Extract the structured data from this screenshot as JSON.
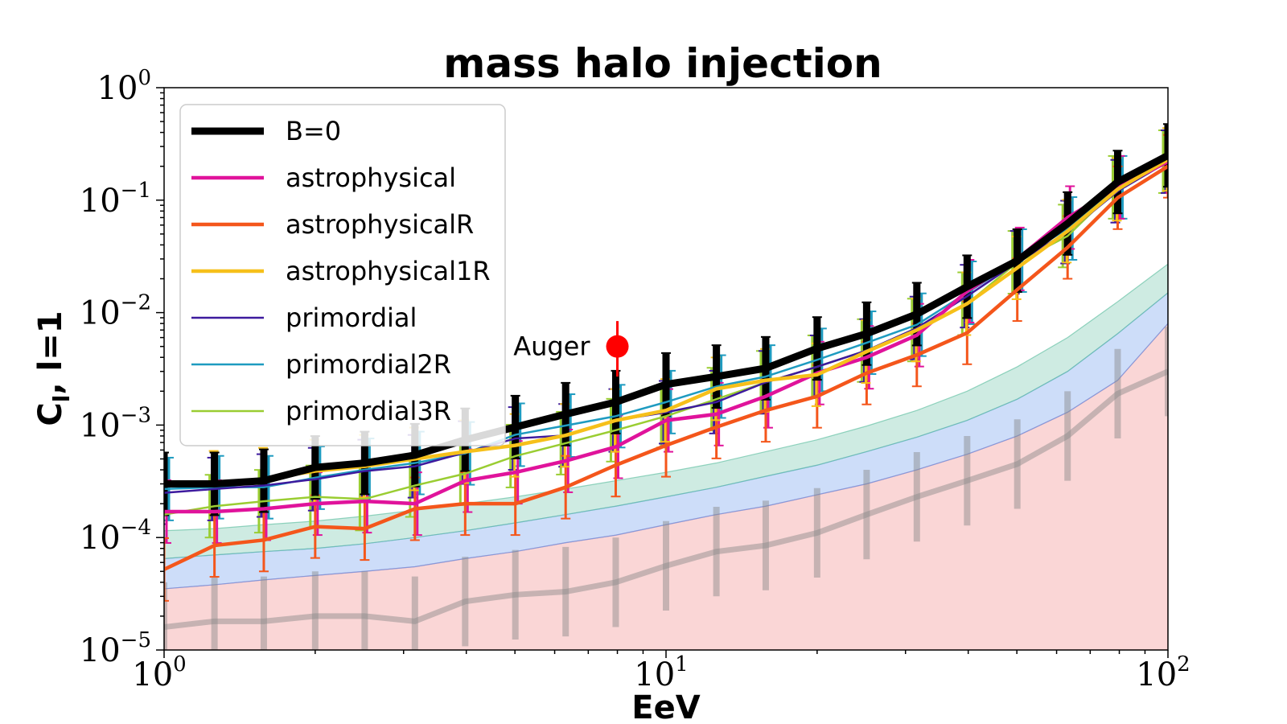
{
  "chart_data": {
    "type": "line",
    "title": "mass halo injection",
    "xlabel": "EeV",
    "ylabel": "C",
    "ylabel_sub": "l",
    "ylabel_suffix": ", l=1",
    "xscale": "log",
    "yscale": "log",
    "xlim": [
      1,
      100
    ],
    "ylim": [
      1e-05,
      1
    ],
    "x_ticks": [
      {
        "base": "10",
        "exp": "0",
        "value": 1
      },
      {
        "base": "10",
        "exp": "1",
        "value": 10
      },
      {
        "base": "10",
        "exp": "2",
        "value": 100
      }
    ],
    "y_ticks": [
      {
        "base": "10",
        "exp": "0",
        "value": 1
      },
      {
        "base": "10",
        "exp": "−1",
        "value": 0.1
      },
      {
        "base": "10",
        "exp": "−2",
        "value": 0.01
      },
      {
        "base": "10",
        "exp": "−3",
        "value": 0.001
      },
      {
        "base": "10",
        "exp": "−4",
        "value": 0.0001
      },
      {
        "base": "10",
        "exp": "−5",
        "value": 1e-05
      }
    ],
    "x": [
      1.0,
      1.26,
      1.58,
      2.0,
      2.51,
      3.16,
      3.98,
      5.01,
      6.31,
      7.94,
      10.0,
      12.6,
      15.8,
      20.0,
      25.1,
      31.6,
      39.8,
      50.1,
      63.1,
      79.4,
      100.0
    ],
    "bands": [
      {
        "name": "band-red",
        "color": "#f08080",
        "lower": 1e-05,
        "upper": [
          3.5e-05,
          3.8e-05,
          4.2e-05,
          4.6e-05,
          5e-05,
          5.5e-05,
          6.5e-05,
          7.5e-05,
          9e-05,
          0.000105,
          0.00013,
          0.00016,
          0.00019,
          0.00024,
          0.0003,
          0.0004,
          0.00055,
          0.0008,
          0.0013,
          0.0025,
          0.008
        ]
      },
      {
        "name": "band-blue",
        "color": "#6495ed",
        "lower": "band-red",
        "upper": [
          6.5e-05,
          7e-05,
          7.5e-05,
          8e-05,
          8.8e-05,
          0.0001,
          0.000115,
          0.000135,
          0.00016,
          0.00019,
          0.00023,
          0.00028,
          0.00035,
          0.00044,
          0.00058,
          0.00078,
          0.0011,
          0.0017,
          0.003,
          0.0065,
          0.015
        ]
      },
      {
        "name": "band-green",
        "color": "#66c2a5",
        "lower": "band-blue",
        "upper": [
          0.000115,
          0.00012,
          0.00013,
          0.00014,
          0.000155,
          0.000175,
          0.0002,
          0.00023,
          0.00027,
          0.00032,
          0.00038,
          0.00046,
          0.00058,
          0.00074,
          0.00098,
          0.00135,
          0.002,
          0.0033,
          0.006,
          0.0125,
          0.027
        ]
      }
    ],
    "grey_line": {
      "name": "reference-grey",
      "values": [
        1.6e-05,
        1.8e-05,
        1.8e-05,
        2e-05,
        2e-05,
        1.8e-05,
        2.7e-05,
        3.1e-05,
        3.3e-05,
        4e-05,
        5.6e-05,
        7.5e-05,
        8.5e-05,
        0.00011,
        0.00016,
        0.00023,
        0.00032,
        0.00045,
        0.0008,
        0.0019,
        0.003
      ],
      "err_factor": 2.5
    },
    "series": [
      {
        "name": "primordial3R",
        "color": "#9acd32",
        "width": 2.5,
        "err_factor": 1.9,
        "values": [
          0.00016,
          0.00019,
          0.00021,
          0.00023,
          0.00022,
          0.00029,
          0.00037,
          0.00053,
          0.00069,
          0.0009,
          0.0012,
          0.0017,
          0.0024,
          0.0033,
          0.0046,
          0.007,
          0.012,
          0.028,
          0.048,
          0.13,
          0.22
        ]
      },
      {
        "name": "primordial2R",
        "color": "#1e9bc0",
        "width": 2.5,
        "err_factor": 1.9,
        "values": [
          0.00027,
          0.00028,
          0.00028,
          0.00034,
          0.0004,
          0.00046,
          0.00056,
          0.00082,
          0.00099,
          0.0012,
          0.0016,
          0.0022,
          0.0027,
          0.0038,
          0.0054,
          0.0078,
          0.015,
          0.029,
          0.056,
          0.13,
          0.23
        ]
      },
      {
        "name": "primordial",
        "color": "#3d1a9e",
        "width": 2.5,
        "err_factor": 1.9,
        "values": [
          0.00025,
          0.00027,
          0.00029,
          0.00033,
          0.00039,
          0.00043,
          0.00057,
          0.00076,
          0.00081,
          0.0011,
          0.0013,
          0.0016,
          0.0024,
          0.0033,
          0.0046,
          0.0073,
          0.014,
          0.028,
          0.052,
          0.12,
          0.22
        ]
      },
      {
        "name": "astrophysical",
        "color": "#e0139b",
        "width": 4.5,
        "err_factor": 1.9,
        "values": [
          0.00017,
          0.00017,
          0.00018,
          0.0002,
          0.00021,
          0.0002,
          0.00032,
          0.00038,
          0.00048,
          0.00064,
          0.0011,
          0.00125,
          0.0018,
          0.0029,
          0.004,
          0.0063,
          0.0155,
          0.03,
          0.07,
          0.13,
          0.22
        ]
      },
      {
        "name": "astrophysicalR",
        "color": "#f4561b",
        "width": 4.5,
        "err_factor": 1.9,
        "values": [
          5.2e-05,
          8.5e-05,
          9.5e-05,
          0.000125,
          0.00012,
          0.00018,
          0.0002,
          0.0002,
          0.00028,
          0.00044,
          0.00066,
          0.00096,
          0.00135,
          0.0018,
          0.0029,
          0.0042,
          0.0066,
          0.016,
          0.038,
          0.105,
          0.2
        ]
      },
      {
        "name": "astrophysical1R",
        "color": "#f6c01a",
        "width": 4.5,
        "err_factor": 1.9,
        "values": [
          0.0003,
          0.00031,
          0.00033,
          0.00039,
          0.00043,
          0.0005,
          0.00058,
          0.00066,
          0.00081,
          0.0011,
          0.00135,
          0.0021,
          0.0025,
          0.0028,
          0.0045,
          0.007,
          0.012,
          0.025,
          0.053,
          0.125,
          0.23
        ]
      },
      {
        "name": "B=0",
        "color": "#000000",
        "width": 9,
        "err_factor": 1.9,
        "err_width": 9,
        "values": [
          0.0003,
          0.0003,
          0.00032,
          0.00042,
          0.00046,
          0.00054,
          0.00074,
          0.00096,
          0.00125,
          0.0016,
          0.0023,
          0.0027,
          0.0032,
          0.0048,
          0.0065,
          0.0097,
          0.017,
          0.029,
          0.062,
          0.145,
          0.25
        ]
      }
    ],
    "legend": {
      "position": "upper-left",
      "entries": [
        {
          "label": "B=0",
          "color": "#000000",
          "width": 9
        },
        {
          "label": "astrophysical",
          "color": "#e0139b",
          "width": 4.5
        },
        {
          "label": "astrophysicalR",
          "color": "#f4561b",
          "width": 4.5
        },
        {
          "label": "astrophysical1R",
          "color": "#f6c01a",
          "width": 4.5
        },
        {
          "label": "primordial",
          "color": "#3d1a9e",
          "width": 2.5
        },
        {
          "label": "primordial2R",
          "color": "#1e9bc0",
          "width": 2.5
        },
        {
          "label": "primordial3R",
          "color": "#9acd32",
          "width": 2.5
        }
      ]
    },
    "annotation": {
      "label": "Auger",
      "x": 8.0,
      "y": 0.005,
      "yerr_low": 0.0027,
      "yerr_high": 0.0084,
      "color": "#ff0000"
    }
  }
}
